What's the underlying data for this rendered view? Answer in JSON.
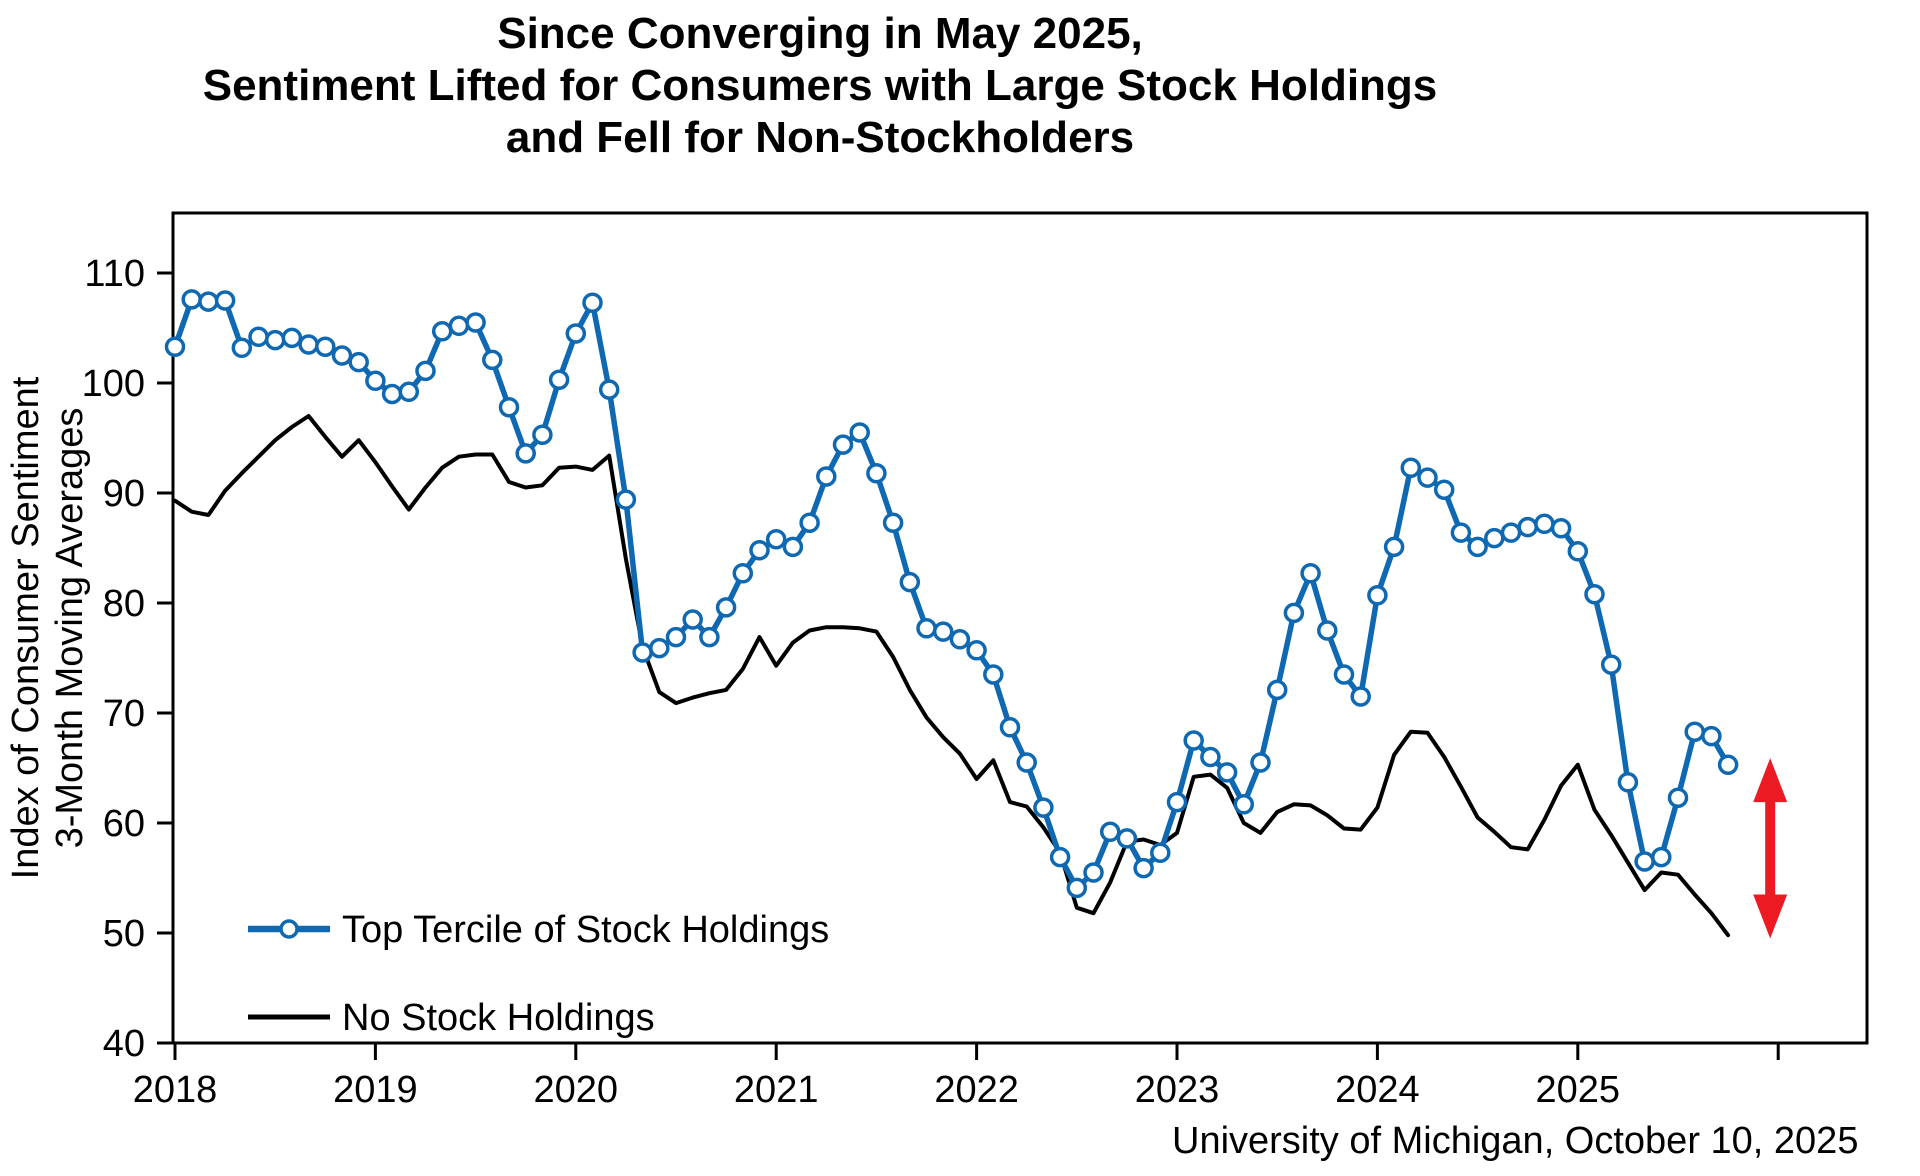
{
  "figure": {
    "title_lines": [
      "Since Converging in May 2025,",
      "Sentiment Lifted for Consumers with Large Stock Holdings",
      "and Fell for Non-Stockholders"
    ],
    "source_note": "University of Michigan, October 10, 2025"
  },
  "chart_data": {
    "type": "line",
    "title": "Since Converging in May 2025, Sentiment Lifted for Consumers with Large Stock Holdings and Fell for Non-Stockholders",
    "ylabel_lines": [
      "Index of Consumer Sentiment",
      "3-Month Moving Averages"
    ],
    "xlabel": "",
    "grid": false,
    "legend_position": "inside-bottom-left",
    "ylim": [
      40,
      115.5
    ],
    "xlim_years": [
      2018.0,
      2026.45
    ],
    "yticks": [
      40,
      50,
      60,
      70,
      80,
      90,
      100,
      110
    ],
    "xticks": [
      {
        "year": 2018,
        "label": "2018"
      },
      {
        "year": 2019,
        "label": "2019"
      },
      {
        "year": 2020,
        "label": "2020"
      },
      {
        "year": 2021,
        "label": "2021"
      },
      {
        "year": 2022,
        "label": "2022"
      },
      {
        "year": 2023,
        "label": "2023"
      },
      {
        "year": 2024,
        "label": "2024"
      },
      {
        "year": 2025,
        "label": "2025"
      },
      {
        "year": 2026,
        "label": ""
      }
    ],
    "x_frequency": "monthly (3-month moving averages)",
    "x_months": [
      "2018-01",
      "2018-02",
      "2018-03",
      "2018-04",
      "2018-05",
      "2018-06",
      "2018-07",
      "2018-08",
      "2018-09",
      "2018-10",
      "2018-11",
      "2018-12",
      "2019-01",
      "2019-02",
      "2019-03",
      "2019-04",
      "2019-05",
      "2019-06",
      "2019-07",
      "2019-08",
      "2019-09",
      "2019-10",
      "2019-11",
      "2019-12",
      "2020-01",
      "2020-02",
      "2020-03",
      "2020-04",
      "2020-05",
      "2020-06",
      "2020-07",
      "2020-08",
      "2020-09",
      "2020-10",
      "2020-11",
      "2020-12",
      "2021-01",
      "2021-02",
      "2021-03",
      "2021-04",
      "2021-05",
      "2021-06",
      "2021-07",
      "2021-08",
      "2021-09",
      "2021-10",
      "2021-11",
      "2021-12",
      "2022-01",
      "2022-02",
      "2022-03",
      "2022-04",
      "2022-05",
      "2022-06",
      "2022-07",
      "2022-08",
      "2022-09",
      "2022-10",
      "2022-11",
      "2022-12",
      "2023-01",
      "2023-02",
      "2023-03",
      "2023-04",
      "2023-05",
      "2023-06",
      "2023-07",
      "2023-08",
      "2023-09",
      "2023-10",
      "2023-11",
      "2023-12",
      "2024-01",
      "2024-02",
      "2024-03",
      "2024-04",
      "2024-05",
      "2024-06",
      "2024-07",
      "2024-08",
      "2024-09",
      "2024-10",
      "2024-11",
      "2024-12",
      "2025-01",
      "2025-02",
      "2025-03",
      "2025-04",
      "2025-05",
      "2025-06",
      "2025-07",
      "2025-08",
      "2025-09",
      "2025-10"
    ],
    "series": [
      {
        "name": "Top Tercile of Stock Holdings",
        "color": "#0E68B2",
        "marker": "open-circle",
        "line_width": 5.5,
        "values": [
          103.3,
          107.6,
          107.4,
          107.5,
          103.2,
          104.2,
          103.9,
          104.1,
          103.5,
          103.3,
          102.5,
          101.9,
          100.2,
          99.0,
          99.2,
          101.1,
          104.7,
          105.2,
          105.5,
          102.1,
          97.8,
          93.6,
          95.3,
          100.3,
          104.5,
          107.3,
          99.4,
          89.4,
          75.5,
          75.9,
          76.9,
          78.5,
          76.9,
          79.6,
          82.7,
          84.8,
          85.8,
          85.1,
          87.3,
          91.5,
          94.4,
          95.5,
          91.8,
          87.3,
          81.9,
          77.7,
          77.4,
          76.7,
          75.7,
          73.5,
          68.7,
          65.5,
          61.4,
          56.9,
          54.1,
          55.5,
          59.2,
          58.6,
          55.9,
          57.3,
          61.9,
          67.5,
          66.0,
          64.6,
          61.7,
          65.5,
          72.1,
          79.1,
          82.7,
          77.5,
          73.5,
          71.5,
          80.7,
          85.1,
          92.3,
          91.4,
          90.3,
          86.4,
          85.1,
          85.9,
          86.4,
          86.9,
          87.2,
          86.8,
          84.7,
          80.8,
          74.4,
          63.7,
          56.5,
          56.9,
          62.3,
          68.3,
          67.9,
          65.3
        ]
      },
      {
        "name": "No Stock Holdings",
        "color": "#000000",
        "marker": "none",
        "line_width": 4,
        "values": [
          89.3,
          88.3,
          88.0,
          90.2,
          91.8,
          93.3,
          94.8,
          96.0,
          97.0,
          95.1,
          93.3,
          94.8,
          92.8,
          90.6,
          88.5,
          90.5,
          92.3,
          93.3,
          93.5,
          93.5,
          91.0,
          90.5,
          90.7,
          92.3,
          92.4,
          92.1,
          93.4,
          84.0,
          76.0,
          71.9,
          70.9,
          71.4,
          71.8,
          72.1,
          74.0,
          76.9,
          74.3,
          76.4,
          77.5,
          77.8,
          77.8,
          77.7,
          77.4,
          75.1,
          72.1,
          69.6,
          67.8,
          66.3,
          64.0,
          65.7,
          61.9,
          61.5,
          59.6,
          57.3,
          52.3,
          51.8,
          54.6,
          58.3,
          58.5,
          58.0,
          59.1,
          64.2,
          64.4,
          63.2,
          60.0,
          59.1,
          61.0,
          61.7,
          61.6,
          60.7,
          59.5,
          59.4,
          61.4,
          66.2,
          68.3,
          68.2,
          66.0,
          63.3,
          60.5,
          59.2,
          57.8,
          57.6,
          60.3,
          63.4,
          65.3,
          61.2,
          58.9,
          56.4,
          53.9,
          55.5,
          55.3,
          53.5,
          51.8,
          49.8
        ]
      }
    ],
    "annotation": {
      "type": "vertical-double-arrow",
      "meaning": "gap between the two series at the end of the sample",
      "color": "#EC1B23",
      "x_year": 2025.96,
      "value_top": 65.9,
      "value_bottom": 49.5
    }
  }
}
